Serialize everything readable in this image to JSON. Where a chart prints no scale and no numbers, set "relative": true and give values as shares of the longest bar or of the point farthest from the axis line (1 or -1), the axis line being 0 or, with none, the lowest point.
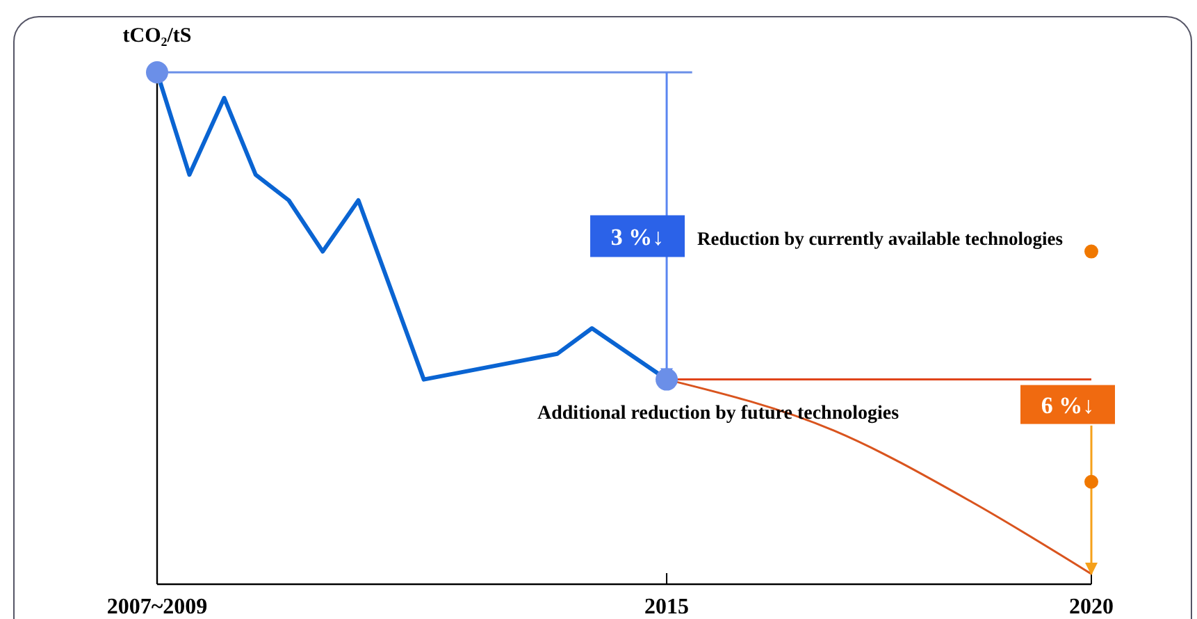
{
  "chart_data": {
    "type": "line",
    "relative": true,
    "ylabel": "tCO₂/tS",
    "xlim": [
      2009,
      2020
    ],
    "xticks": [
      {
        "value": 2009,
        "label": "2007~2009"
      },
      2015,
      2020
    ],
    "grid": false,
    "series": [
      {
        "color": "#0a64d2",
        "x": [
          2009,
          2009.38,
          2009.79,
          2010.16,
          2010.55,
          2010.95,
          2011.37,
          2012.14,
          2013.71,
          2014.12,
          2015
        ],
        "values": [
          1,
          0.8,
          0.95,
          0.8,
          0.75,
          0.65,
          0.75,
          0.4,
          0.45,
          0.5,
          0.4
        ]
      },
      {
        "color": "#6b8fe8",
        "x": [
          2009,
          2015.3
        ],
        "values": [
          1,
          1
        ]
      },
      {
        "color": "#e0441a",
        "x": [
          2015,
          2020
        ],
        "values": [
          0.4,
          0.4
        ]
      },
      {
        "color": "#5a86f0",
        "x": [
          2015,
          2015
        ],
        "values": [
          1,
          0.4
        ],
        "line_style": "solid"
      },
      {
        "color": "#d9541e",
        "x": [
          2015,
          2016.97,
          2018.6,
          2020
        ],
        "values": [
          0.4,
          0.3,
          0.16,
          0.02
        ]
      },
      {
        "color": "#f5a01a",
        "x": [
          2020,
          2020
        ],
        "values": [
          0.31,
          0.02
        ]
      },
      {
        "type": "scatter",
        "marker": "circle",
        "color": "#f07800",
        "x": [
          2020,
          2020
        ],
        "values": [
          0.65,
          0.2
        ]
      },
      {
        "type": "scatter",
        "marker": "circle",
        "color": "#6b8fe8",
        "x": [
          2009,
          2015
        ],
        "values": [
          1,
          0.4
        ]
      }
    ],
    "annotations": [
      {
        "text": "3 %↓",
        "x": 2015,
        "y": 0.68
      },
      "Reduction by currently available technologies",
      "Additional reduction by future technologies",
      "6 %↓"
    ]
  }
}
